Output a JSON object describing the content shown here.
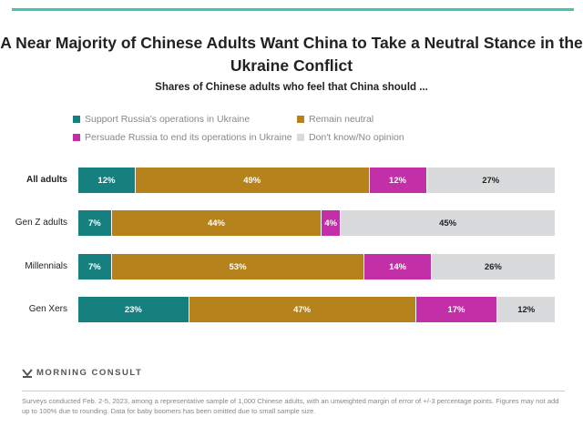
{
  "chart_data": {
    "type": "bar",
    "orientation": "horizontal-stacked",
    "title": "A Near Majority of Chinese Adults Want China to Take a Neutral Stance in the Ukraine Conflict",
    "subtitle": "Shares of Chinese adults who feel that China should ...",
    "categories": [
      "All adults",
      "Gen Z adults",
      "Millennials",
      "Gen Xers"
    ],
    "series": [
      {
        "name": "Support Russia's operations in Ukraine",
        "color": "#15807e",
        "values": [
          12,
          7,
          7,
          23
        ]
      },
      {
        "name": "Remain neutral",
        "color": "#b5821c",
        "values": [
          49,
          44,
          53,
          47
        ]
      },
      {
        "name": "Persuade Russia to end its operations in Ukraine",
        "color": "#c22fa6",
        "values": [
          12,
          4,
          14,
          17
        ]
      },
      {
        "name": "Don't know/No opinion",
        "color": "#d9dadb",
        "values": [
          27,
          45,
          26,
          12
        ]
      }
    ],
    "xlim": [
      0,
      100
    ],
    "unit": "%",
    "legend_position": "top"
  },
  "brand": "MORNING CONSULT",
  "footnote": "Surveys conducted Feb. 2-5, 2023, among a representative sample of 1,000 Chinese adults, with an unweighted margin of error of +/-3 percentage points. Figures may not add up to 100% due to rounding. Data for baby boomers has been omitted due to small sample size."
}
